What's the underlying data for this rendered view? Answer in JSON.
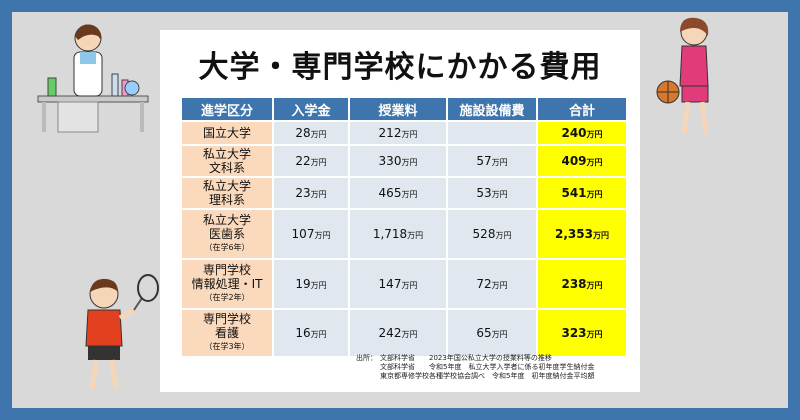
{
  "title": "大学・専門学校にかかる費用",
  "table": {
    "headers": [
      "進学区分",
      "入学金",
      "授業料",
      "施設設備費",
      "合計"
    ],
    "unit": "万円",
    "rows": [
      {
        "label": [
          "国立大学"
        ],
        "note": "",
        "entrance": "28",
        "tuition": "212",
        "facility": "",
        "total": "240"
      },
      {
        "label": [
          "私立大学",
          "文科系"
        ],
        "note": "",
        "entrance": "22",
        "tuition": "330",
        "facility": "57",
        "total": "409"
      },
      {
        "label": [
          "私立大学",
          "理科系"
        ],
        "note": "",
        "entrance": "23",
        "tuition": "465",
        "facility": "53",
        "total": "541"
      },
      {
        "label": [
          "私立大学",
          "医歯系"
        ],
        "note": "（在学6年）",
        "entrance": "107",
        "tuition": "1,718",
        "facility": "528",
        "total": "2,353"
      },
      {
        "label": [
          "専門学校",
          "情報処理・IT"
        ],
        "note": "（在学2年）",
        "entrance": "19",
        "tuition": "147",
        "facility": "72",
        "total": "238"
      },
      {
        "label": [
          "専門学校",
          "看護"
        ],
        "note": "（在学3年）",
        "entrance": "16",
        "tuition": "242",
        "facility": "65",
        "total": "323"
      }
    ]
  },
  "source": {
    "label": "出所：",
    "lines": [
      "文部科学省　　2023年国公私立大学の授業料等の推移",
      "文部科学省　　令和5年度　私立大学入学者に係る初年度学生納付金",
      "東京都専修学校各種学校協会調べ　令和5年度　初年度納付金平均額"
    ]
  },
  "colors": {
    "background": "#3f75ad",
    "frame": "#d9d9d9",
    "header": "#3f75ad",
    "row_header": "#fad9bd",
    "cell": "#e0e7ef",
    "total": "#ffff00"
  },
  "illustrations": [
    "scientist-illustration",
    "basketball-player-illustration",
    "badminton-player-illustration"
  ]
}
